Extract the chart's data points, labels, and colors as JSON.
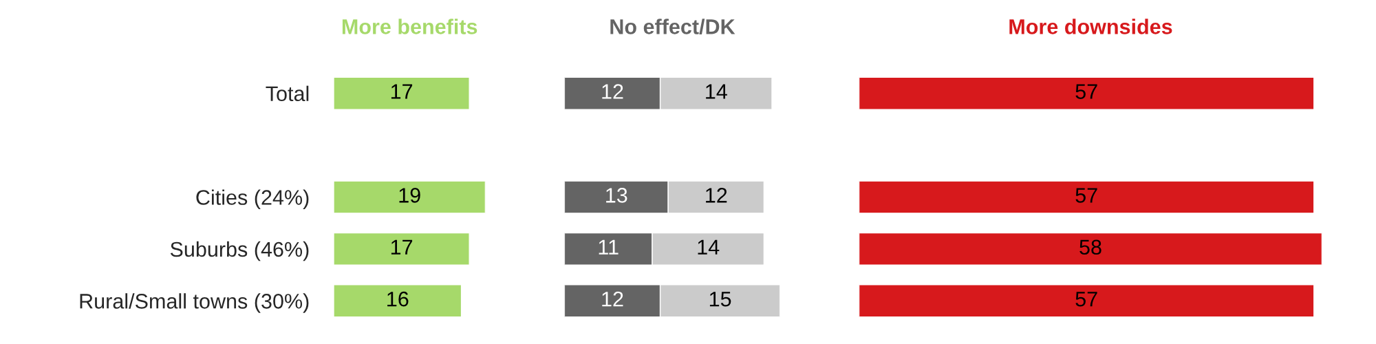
{
  "chart_data": [
    {
      "type": "bar",
      "orientation": "horizontal",
      "title": "More benefits",
      "categories": [
        "Total",
        null,
        "Cities (24%)",
        "Suburbs (46%)",
        "Rural/Small towns (30%)"
      ],
      "series": [
        {
          "color": "#a6d96a",
          "values": [
            17,
            null,
            19,
            17,
            16
          ]
        }
      ],
      "data_labels": true,
      "tick_labels": "y"
    },
    {
      "type": "bar",
      "orientation": "horizontal",
      "stacked": true,
      "title": "No effect/DK",
      "series": [
        {
          "color": "#646464",
          "values": [
            12,
            null,
            13,
            11,
            12
          ]
        },
        {
          "color": "#cbcbcb",
          "values": [
            14,
            null,
            12,
            14,
            15
          ]
        }
      ],
      "data_labels": true,
      "tick_labels": false
    },
    {
      "type": "bar",
      "orientation": "horizontal",
      "title": "More downsides",
      "series": [
        {
          "color": "#d7191c",
          "values": [
            57,
            null,
            57,
            58,
            57
          ]
        }
      ],
      "data_labels": true,
      "tick_labels": false
    }
  ]
}
